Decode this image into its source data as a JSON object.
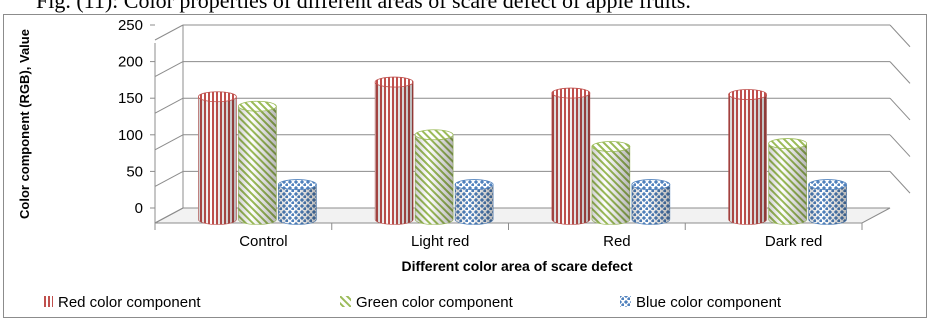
{
  "caption": "Fig. (11): Color properties of different areas of scare defect of apple fruits.",
  "chart_data": {
    "type": "bar",
    "style": "3d-cylinder",
    "categories": [
      "Control",
      "Light red",
      "Red",
      "Dark red"
    ],
    "series": [
      {
        "name": "Red color component",
        "values": [
          165,
          185,
          170,
          168
        ],
        "color": "#c0504d",
        "pattern": "vertical-stripes"
      },
      {
        "name": "Green color component",
        "values": [
          152,
          113,
          97,
          101
        ],
        "color": "#9bbb59",
        "pattern": "diagonal-stripes"
      },
      {
        "name": "Blue color component",
        "values": [
          45,
          45,
          45,
          45
        ],
        "color": "#4f81bd",
        "pattern": "dots"
      }
    ],
    "title": "",
    "xlabel": "Different color area of scare defect",
    "ylabel": "Color component (RGB), Value",
    "ylim": [
      0,
      250
    ],
    "yticks": [
      0,
      50,
      100,
      150,
      200,
      250
    ],
    "grid": true,
    "legend": "bottom"
  }
}
